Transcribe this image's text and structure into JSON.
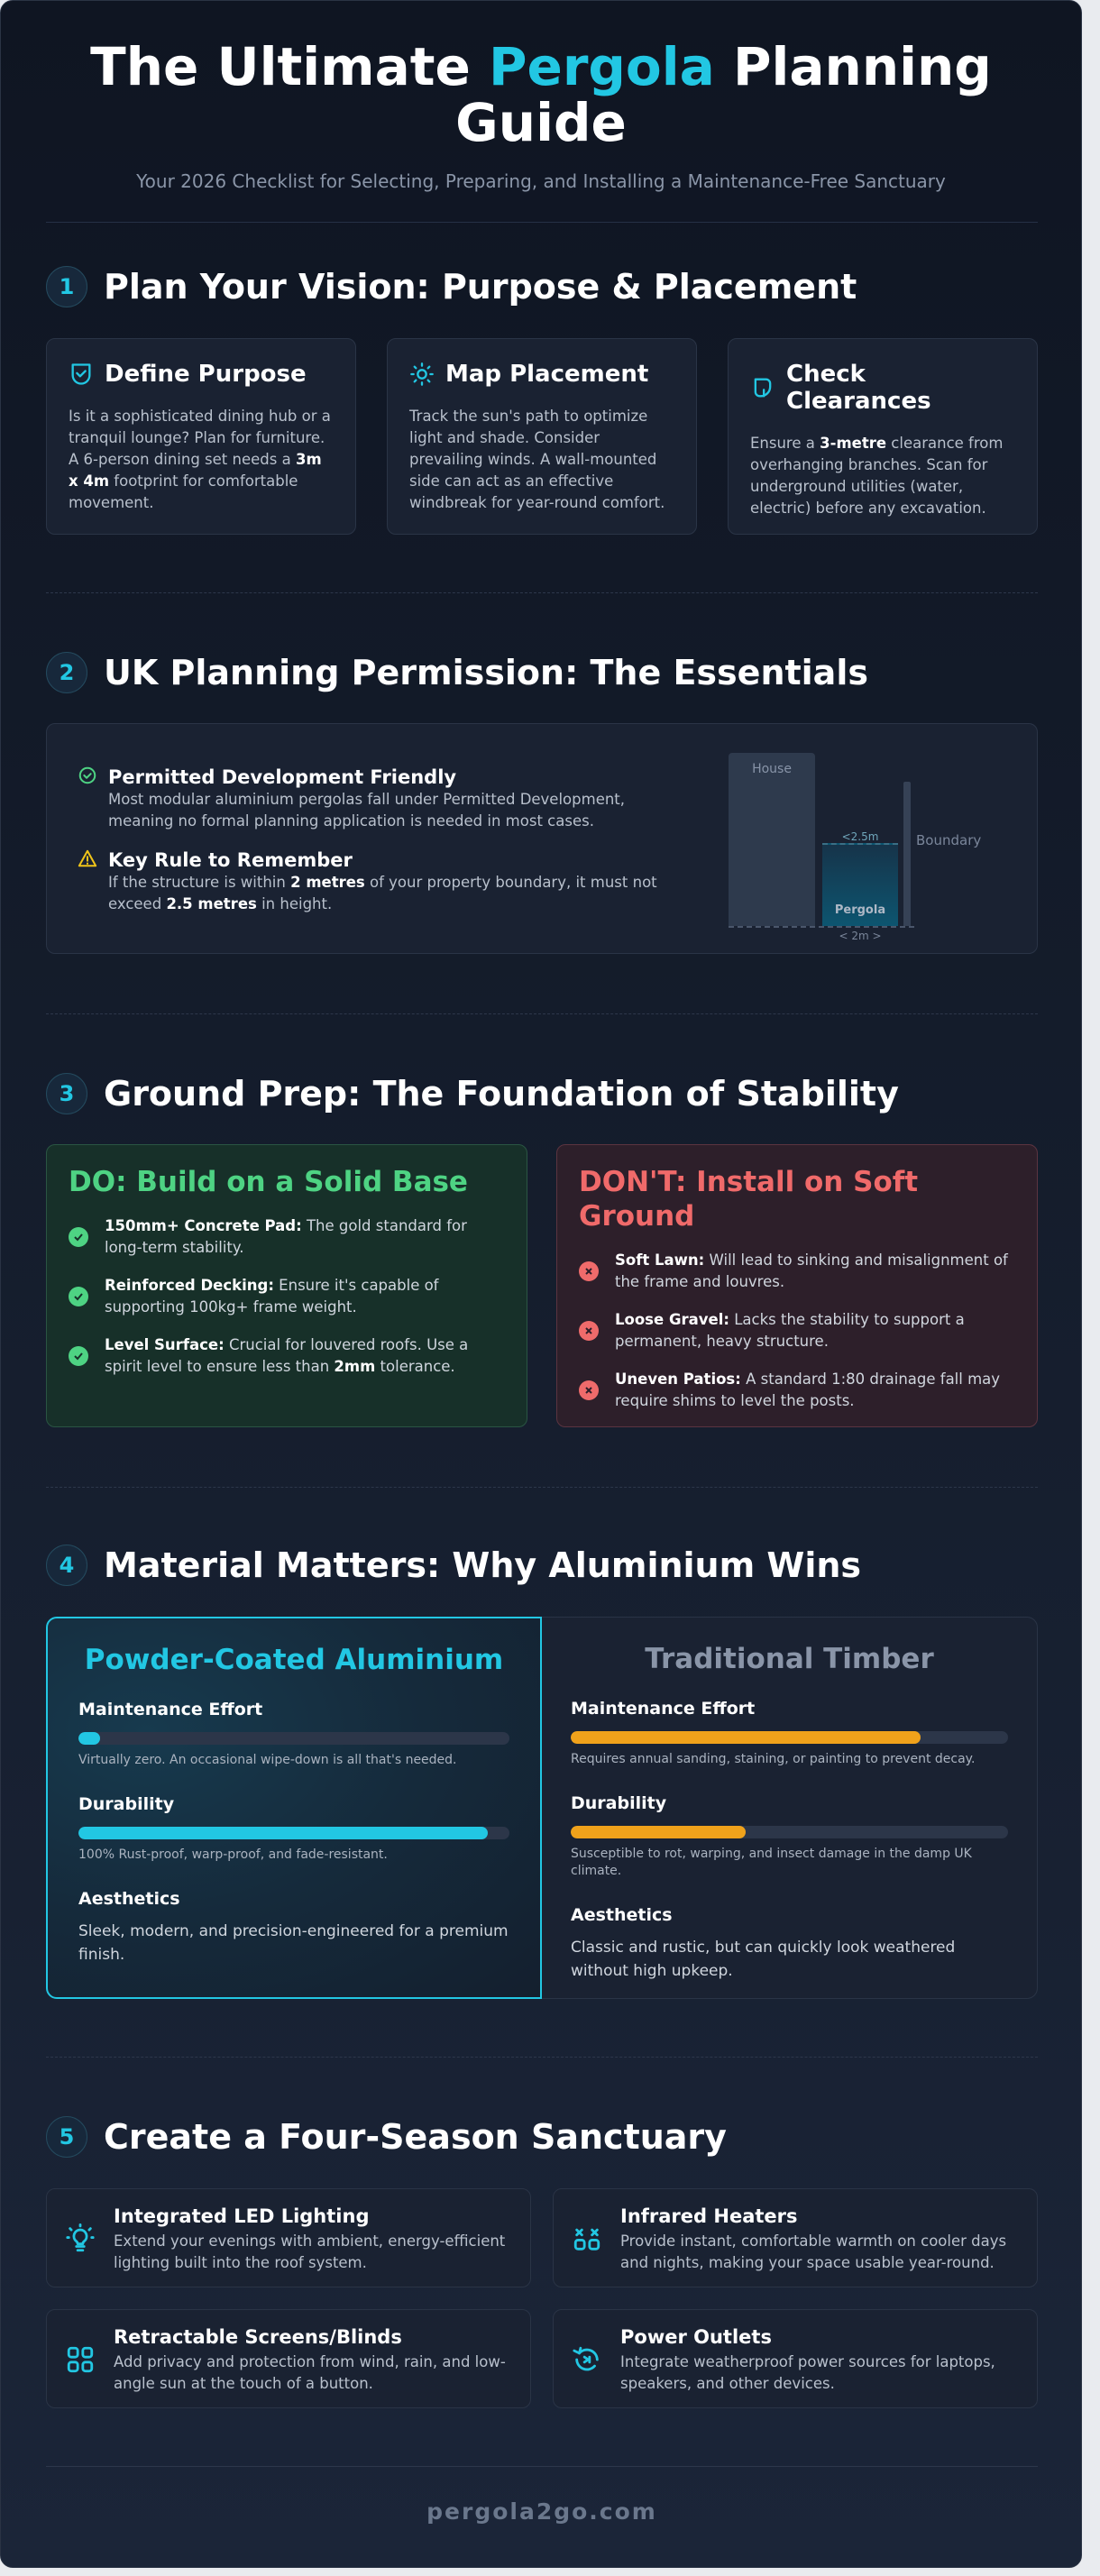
{
  "header": {
    "title_pre": "The Ultimate ",
    "title_accent": "Pergola",
    "title_post": " Planning Guide",
    "subtitle": "Your 2026 Checklist for Selecting, Preparing, and Installing a Maintenance-Free Sanctuary"
  },
  "colors": {
    "accent": "#22c7e3",
    "success": "#4ed383",
    "danger": "#ef6b6b",
    "warning": "#f0a21b",
    "background": "#141c2b"
  },
  "section1": {
    "number": "1",
    "title": "Plan Your Vision: Purpose & Placement",
    "cards": [
      {
        "icon": "shield-check-icon",
        "title": "Define Purpose",
        "pre": "Is it a sophisticated dining hub or a tranquil lounge? Plan for furniture. A 6-person dining set needs a ",
        "bold": "3m x 4m",
        "post": " footprint for comfortable movement."
      },
      {
        "icon": "sun-icon",
        "title": "Map Placement",
        "pre": "Track the sun's path to optimize light and shade. Consider prevailing winds. A wall-mounted side can act as an effective windbreak for year-round comfort.",
        "bold": "",
        "post": ""
      },
      {
        "icon": "branch-icon",
        "title": "Check Clearances",
        "pre": "Ensure a ",
        "bold": "3-metre",
        "post": " clearance from overhanging branches. Scan for underground utilities (water, electric) before any excavation."
      }
    ]
  },
  "section2": {
    "number": "2",
    "title": "UK Planning Permission: The Essentials",
    "items": [
      {
        "icon": "check-circle-icon",
        "title": "Permitted Development Friendly",
        "body": "Most modular aluminium pergolas fall under Permitted Development, meaning no formal planning application is needed in most cases."
      },
      {
        "icon": "warning-triangle-icon",
        "title": "Key Rule to Remember",
        "body_pre": "If the structure is within ",
        "bold1": "2 metres",
        "body_mid": " of your property boundary, it must not exceed ",
        "bold2": "2.5 metres",
        "body_post": " in height."
      }
    ],
    "diagram": {
      "house": "House",
      "pergola": "Pergola",
      "height_label": "<2.5m",
      "width_label": "< 2m >",
      "boundary": "Boundary"
    }
  },
  "section3": {
    "number": "3",
    "title": "Ground Prep: The Foundation of Stability",
    "do_title": "DO: Build on a Solid Base",
    "do_items": [
      {
        "bold": "150mm+ Concrete Pad:",
        "text": " The gold standard for long-term stability."
      },
      {
        "bold": "Reinforced Decking:",
        "text": " Ensure it's capable of supporting 100kg+ frame weight."
      },
      {
        "bold": "Level Surface:",
        "text": " Crucial for louvered roofs. Use a spirit level to ensure less than ",
        "bold2": "2mm",
        "text2": " tolerance."
      }
    ],
    "dont_title": "DON'T: Install on Soft Ground",
    "dont_items": [
      {
        "bold": "Soft Lawn:",
        "text": " Will lead to sinking and misalignment of the frame and louvres."
      },
      {
        "bold": "Loose Gravel:",
        "text": " Lacks the stability to support a permanent, heavy structure."
      },
      {
        "bold": "Uneven Patios:",
        "text": " A standard 1:80 drainage fall may require shims to level the posts."
      }
    ]
  },
  "section4": {
    "number": "4",
    "title": "Material Matters: Why Aluminium Wins",
    "aluminium": {
      "title": "Powder-Coated Aluminium",
      "maint_label": "Maintenance Effort",
      "maint_level": 0.05,
      "maint_note": "Virtually zero. An occasional wipe-down is all that's needed.",
      "dur_label": "Durability",
      "dur_level": 0.95,
      "dur_note": "100% Rust-proof, warp-proof, and fade-resistant.",
      "aes_label": "Aesthetics",
      "aes_text": "Sleek, modern, and precision-engineered for a premium finish."
    },
    "timber": {
      "title": "Traditional Timber",
      "maint_label": "Maintenance Effort",
      "maint_level": 0.8,
      "maint_note": "Requires annual sanding, staining, or painting to prevent decay.",
      "dur_label": "Durability",
      "dur_level": 0.4,
      "dur_note": "Susceptible to rot, warping, and insect damage in the damp UK climate.",
      "aes_label": "Aesthetics",
      "aes_text": "Classic and rustic, but can quickly look weathered without high upkeep."
    }
  },
  "section5": {
    "number": "5",
    "title": "Create a Four-Season Sanctuary",
    "cards": [
      {
        "icon": "lightbulb-icon",
        "title": "Integrated LED Lighting",
        "body": "Extend your evenings with ambient, energy-efficient lighting built into the roof system."
      },
      {
        "icon": "heater-icon",
        "title": "Infrared Heaters",
        "body": "Provide instant, comfortable warmth on cooler days and nights, making your space usable year-round."
      },
      {
        "icon": "blinds-grid-icon",
        "title": "Retractable Screens/Blinds",
        "body": "Add privacy and protection from wind, rain, and low-angle sun at the touch of a button."
      },
      {
        "icon": "power-plug-icon",
        "title": "Power Outlets",
        "body": "Integrate weatherproof power sources for laptops, speakers, and other devices."
      }
    ]
  },
  "footer": {
    "site": "pergola2go.com"
  }
}
